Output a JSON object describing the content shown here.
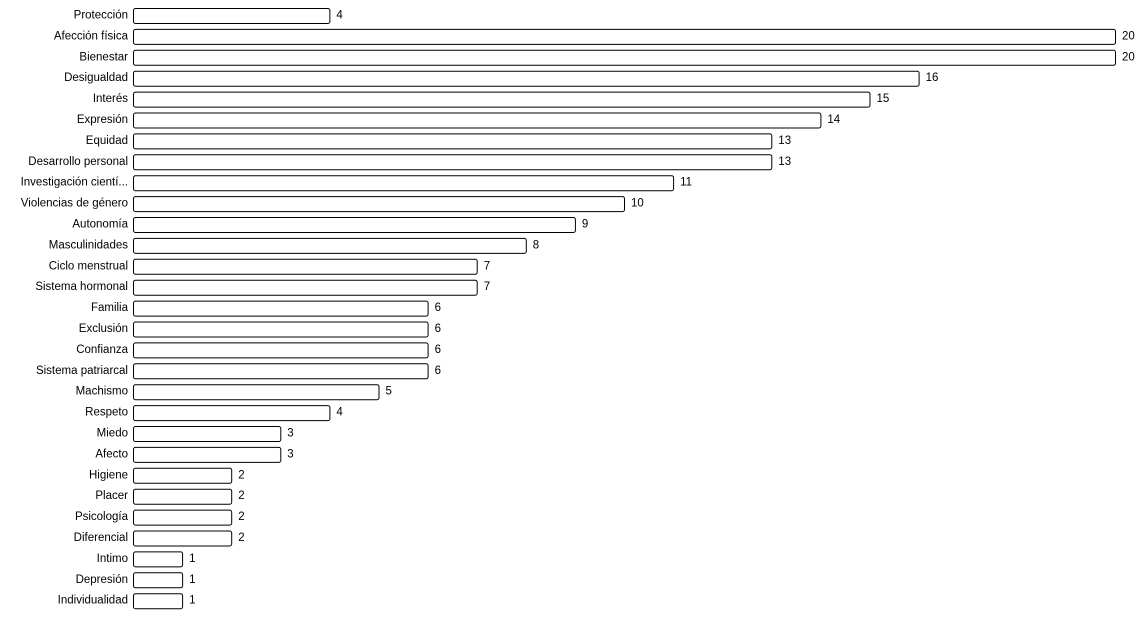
{
  "chart_data": {
    "type": "bar",
    "orientation": "horizontal",
    "categories": [
      "Protección",
      "Afección física",
      "Bienestar",
      "Desigualdad",
      "Interés",
      "Expresión",
      "Equidad",
      "Desarrollo personal",
      "Investigación cientí...",
      "Violencias de género",
      "Autonomía",
      "Masculinidades",
      "Ciclo menstrual",
      "Sistema hormonal",
      "Familia",
      "Exclusión",
      "Confianza",
      "Sistema patriarcal",
      "Machismo",
      "Respeto",
      "Miedo",
      "Afecto",
      "Higiene",
      "Placer",
      "Psicología",
      "Diferencial",
      "Intimo",
      "Depresión",
      "Individualidad"
    ],
    "values": [
      4,
      20,
      20,
      16,
      15,
      14,
      13,
      13,
      11,
      10,
      9,
      8,
      7,
      7,
      6,
      6,
      6,
      6,
      5,
      4,
      3,
      3,
      2,
      2,
      2,
      2,
      1,
      1,
      1
    ],
    "xlim": [
      0,
      20
    ],
    "grid": false,
    "legend": "none",
    "data_labels": true,
    "colors": {
      "bar_fill": "#ffffff",
      "bar_stroke": "#000000",
      "text": "#000000"
    }
  }
}
